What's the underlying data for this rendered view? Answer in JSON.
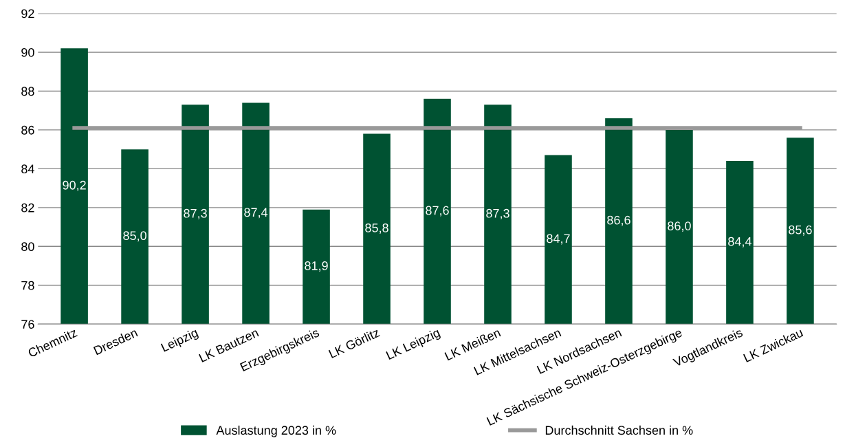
{
  "chart_data": {
    "type": "bar",
    "categories": [
      "Chemnitz",
      "Dresden",
      "Leipzig",
      "LK Bautzen",
      "Erzgebirgskreis",
      "LK Görlitz",
      "LK Leipzig",
      "LK Meißen",
      "LK Mittelsachsen",
      "LK Nordsachsen",
      "LK Sächsische Schweiz-Osterzgebirge",
      "Vogtlandkreis",
      "LK Zwickau"
    ],
    "series": [
      {
        "name": "Auslastung 2023 in %",
        "color": "#005232",
        "values": [
          90.2,
          85.0,
          87.3,
          87.4,
          81.9,
          85.8,
          87.6,
          87.3,
          84.7,
          86.6,
          86.0,
          84.4,
          85.6
        ],
        "value_labels": [
          "90,2",
          "85,0",
          "87,3",
          "87,4",
          "81,9",
          "85,8",
          "87,6",
          "87,3",
          "84,7",
          "86,6",
          "86,0",
          "84,4",
          "85,6"
        ]
      },
      {
        "name": "Durchschnitt Sachsen in %",
        "type": "line",
        "color": "#999999",
        "values": [
          86.1,
          86.1,
          86.1,
          86.1,
          86.1,
          86.1,
          86.1,
          86.1,
          86.1,
          86.1,
          86.1,
          86.1,
          86.1
        ]
      }
    ],
    "ylim": [
      76,
      92
    ],
    "yticks": [
      76,
      78,
      80,
      82,
      84,
      86,
      88,
      90,
      92
    ],
    "grid": "y",
    "legend": "bottom",
    "marker": "none",
    "line_style": "solid"
  }
}
